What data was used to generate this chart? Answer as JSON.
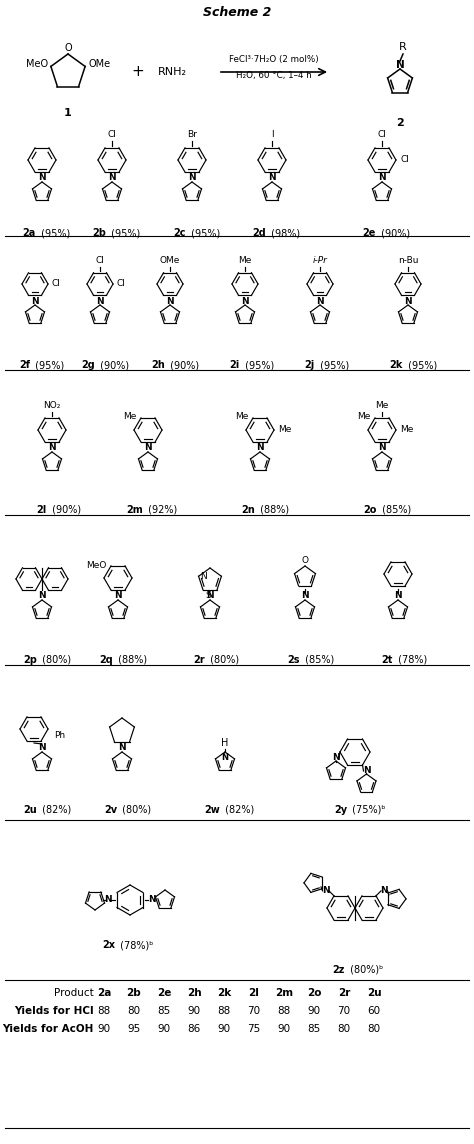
{
  "title": "Scheme 2",
  "reaction_line1": "FeCl³·7H₂O (2 mol%)",
  "reaction_line2": "H₂O, 60 °C, 1–4 h",
  "table_header": [
    "Product",
    "2a",
    "2b",
    "2e",
    "2h",
    "2k",
    "2l",
    "2m",
    "2o",
    "2r",
    "2u"
  ],
  "table_hcl": [
    "Yields for HCl",
    "88",
    "80",
    "85",
    "90",
    "88",
    "70",
    "88",
    "90",
    "70",
    "60"
  ],
  "table_acoh": [
    "Yields for AcOH",
    "90",
    "95",
    "90",
    "86",
    "90",
    "75",
    "90",
    "85",
    "80",
    "80"
  ],
  "bg_color": "#ffffff"
}
